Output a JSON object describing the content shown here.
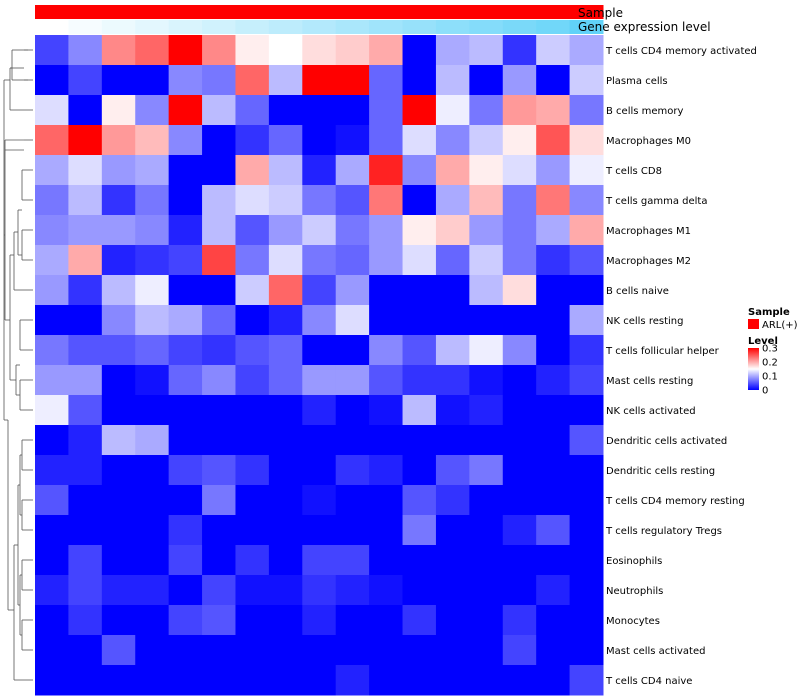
{
  "chart_data": {
    "type": "heatmap",
    "annotation_tracks": [
      {
        "name": "Sample",
        "color": "#ff0000"
      },
      {
        "name": "Gene expression level",
        "gradient_from": "#ffffff",
        "gradient_to": "#61d2f8"
      }
    ],
    "rows": [
      "T cells CD4 memory activated",
      "Plasma cells",
      "B cells memory",
      "Macrophages M0",
      "T cells CD8",
      "T cells gamma delta",
      "Macrophages M1",
      "Macrophages M2",
      "B cells naive",
      "NK cells resting",
      "T cells follicular helper",
      "Mast cells resting",
      "NK cells activated",
      "Dendritic cells activated",
      "Dendritic cells resting",
      "T cells CD4 memory resting",
      "T cells regulatory  Tregs",
      "Eosinophils",
      "Neutrophils",
      "Monocytes",
      "Mast cells activated",
      "T cells CD4 naive"
    ],
    "n_columns": 17,
    "values": [
      [
        0.04,
        0.08,
        0.22,
        0.24,
        0.3,
        0.22,
        0.16,
        0.15,
        0.17,
        0.18,
        0.2,
        0.0,
        0.1,
        0.11,
        0.03,
        0.12,
        0.1
      ],
      [
        0.0,
        0.04,
        0.0,
        0.0,
        0.08,
        0.07,
        0.24,
        0.11,
        0.3,
        0.3,
        0.06,
        0.0,
        0.11,
        0.0,
        0.09,
        0.0,
        0.12
      ],
      [
        0.13,
        0.0,
        0.16,
        0.08,
        0.3,
        0.11,
        0.06,
        0.0,
        0.0,
        0.0,
        0.06,
        0.3,
        0.14,
        0.07,
        0.21,
        0.2,
        0.07
      ],
      [
        0.24,
        0.3,
        0.21,
        0.19,
        0.08,
        0.0,
        0.03,
        0.06,
        0.0,
        0.01,
        0.06,
        0.13,
        0.08,
        0.12,
        0.16,
        0.25,
        0.17
      ],
      [
        0.1,
        0.13,
        0.09,
        0.1,
        0.0,
        0.0,
        0.2,
        0.11,
        0.02,
        0.1,
        0.28,
        0.08,
        0.2,
        0.16,
        0.13,
        0.09,
        0.14
      ],
      [
        0.07,
        0.11,
        0.03,
        0.07,
        0.0,
        0.11,
        0.13,
        0.12,
        0.07,
        0.05,
        0.23,
        0.0,
        0.1,
        0.19,
        0.07,
        0.23,
        0.08
      ],
      [
        0.08,
        0.09,
        0.09,
        0.08,
        0.02,
        0.11,
        0.05,
        0.09,
        0.12,
        0.07,
        0.09,
        0.16,
        0.18,
        0.09,
        0.07,
        0.1,
        0.2
      ],
      [
        0.1,
        0.2,
        0.02,
        0.03,
        0.04,
        0.26,
        0.07,
        0.13,
        0.07,
        0.06,
        0.09,
        0.13,
        0.06,
        0.12,
        0.07,
        0.03,
        0.05
      ],
      [
        0.09,
        0.03,
        0.11,
        0.14,
        0.0,
        0.0,
        0.12,
        0.24,
        0.04,
        0.09,
        0.0,
        0.0,
        0.0,
        0.11,
        0.17,
        0.0,
        0.0
      ],
      [
        0.0,
        0.0,
        0.08,
        0.11,
        0.1,
        0.06,
        0.0,
        0.02,
        0.08,
        0.13,
        0.0,
        0.0,
        0.0,
        0.0,
        0.0,
        0.0,
        0.1
      ],
      [
        0.07,
        0.05,
        0.05,
        0.06,
        0.04,
        0.03,
        0.05,
        0.06,
        0.0,
        0.0,
        0.08,
        0.05,
        0.11,
        0.14,
        0.08,
        0.0,
        0.03
      ],
      [
        0.09,
        0.09,
        0.0,
        0.01,
        0.06,
        0.08,
        0.04,
        0.06,
        0.09,
        0.09,
        0.05,
        0.03,
        0.03,
        0.01,
        0.0,
        0.02,
        0.04
      ],
      [
        0.14,
        0.05,
        0.0,
        0.0,
        0.0,
        0.0,
        0.0,
        0.0,
        0.02,
        0.0,
        0.01,
        0.11,
        0.01,
        0.02,
        0.0,
        0.0,
        0.0
      ],
      [
        0.0,
        0.02,
        0.11,
        0.1,
        0.0,
        0.0,
        0.0,
        0.0,
        0.0,
        0.0,
        0.0,
        0.0,
        0.0,
        0.0,
        0.0,
        0.0,
        0.05
      ],
      [
        0.02,
        0.02,
        0.0,
        0.0,
        0.04,
        0.05,
        0.03,
        0.0,
        0.0,
        0.03,
        0.02,
        0.0,
        0.05,
        0.07,
        0.0,
        0.0,
        0.0
      ],
      [
        0.05,
        0.0,
        0.0,
        0.0,
        0.0,
        0.07,
        0.0,
        0.0,
        0.01,
        0.0,
        0.0,
        0.05,
        0.03,
        0.0,
        0.0,
        0.0,
        0.0
      ],
      [
        0.0,
        0.0,
        0.0,
        0.0,
        0.03,
        0.0,
        0.0,
        0.0,
        0.0,
        0.0,
        0.0,
        0.07,
        0.0,
        0.0,
        0.02,
        0.05,
        0.0
      ],
      [
        0.0,
        0.04,
        0.0,
        0.0,
        0.04,
        0.0,
        0.03,
        0.0,
        0.04,
        0.04,
        0.0,
        0.0,
        0.0,
        0.0,
        0.0,
        0.0,
        0.0
      ],
      [
        0.02,
        0.04,
        0.02,
        0.02,
        0.0,
        0.04,
        0.01,
        0.01,
        0.03,
        0.02,
        0.01,
        0.0,
        0.0,
        0.0,
        0.0,
        0.02,
        0.0
      ],
      [
        0.0,
        0.03,
        0.0,
        0.0,
        0.04,
        0.05,
        0.0,
        0.0,
        0.02,
        0.0,
        0.0,
        0.03,
        0.0,
        0.0,
        0.03,
        0.0,
        0.0
      ],
      [
        0.0,
        0.0,
        0.05,
        0.0,
        0.0,
        0.0,
        0.0,
        0.0,
        0.0,
        0.0,
        0.0,
        0.0,
        0.0,
        0.0,
        0.04,
        0.0,
        0.0
      ],
      [
        0.0,
        0.0,
        0.0,
        0.0,
        0.0,
        0.0,
        0.0,
        0.0,
        0.0,
        0.02,
        0.0,
        0.0,
        0.0,
        0.0,
        0.0,
        0.0,
        0.04
      ]
    ],
    "gene_expression_level": [
      0.0,
      0.06,
      0.12,
      0.18,
      0.24,
      0.3,
      0.36,
      0.42,
      0.48,
      0.54,
      0.6,
      0.66,
      0.72,
      0.78,
      0.84,
      0.9,
      1.0
    ],
    "color_scale": {
      "min": 0,
      "mid": 0.15,
      "max": 0.3,
      "low": "#0000ff",
      "mid_color": "#ffffff",
      "high": "#ff0000"
    },
    "legend": {
      "sample_title": "Sample",
      "sample_entry": "ARL(+)",
      "sample_color": "#ff0000",
      "level_title": "Level",
      "level_ticks": [
        "0.3",
        "0.2",
        "0.1",
        "0"
      ]
    },
    "legend_placement": "right",
    "row_dendrogram": true
  }
}
